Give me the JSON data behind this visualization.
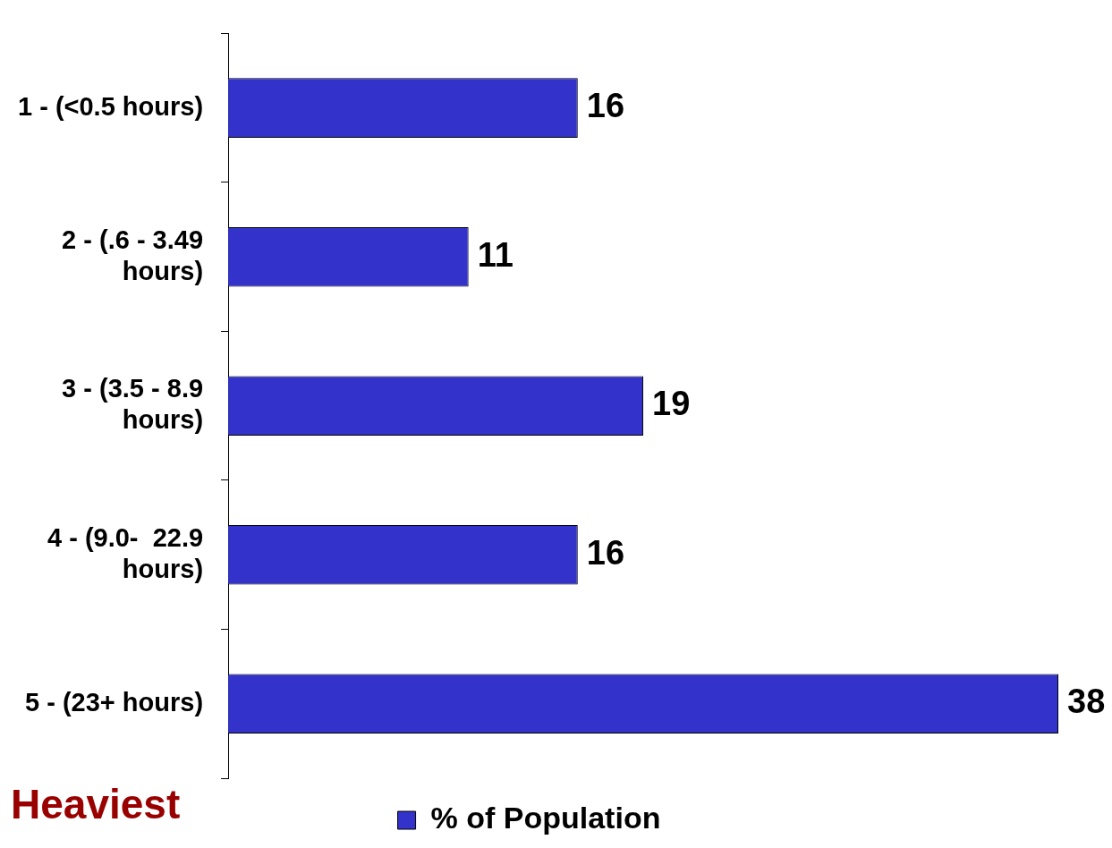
{
  "chart_data": {
    "type": "bar",
    "orientation": "horizontal",
    "categories": [
      "1 - (<0.5 hours)",
      "2 - (.6 - 3.49 hours)",
      "3 - (3.5 - 8.9 hours)",
      "4 - (9.0-  22.9 hours)",
      "5 - (23+ hours)"
    ],
    "series": [
      {
        "name": "% of Population",
        "color": "#3333cc",
        "values": [
          16,
          11,
          19,
          16,
          38
        ]
      }
    ],
    "data_labels": true,
    "legend": "bottom",
    "annotations": [
      "Heaviest"
    ]
  }
}
